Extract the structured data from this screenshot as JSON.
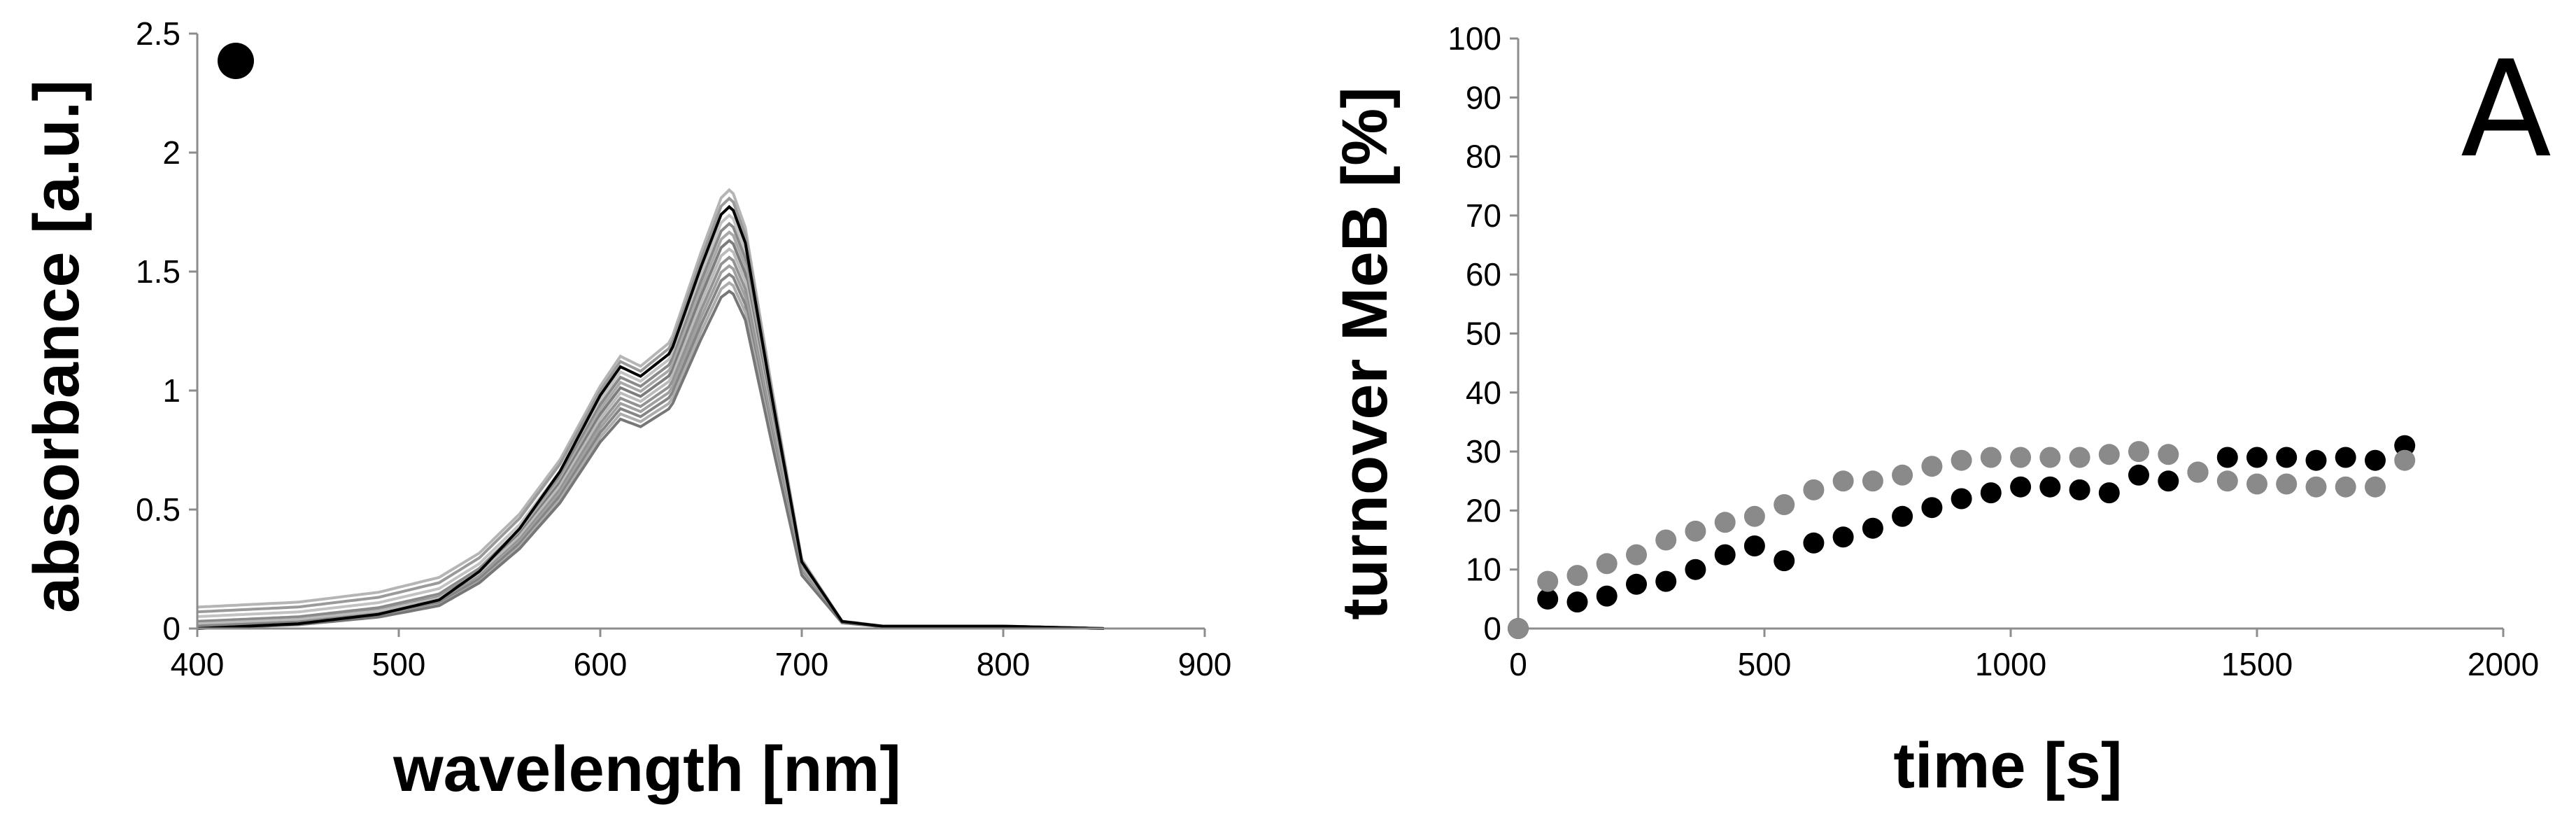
{
  "panel_label": "A",
  "colors": {
    "black_series": "#000000",
    "grey_series": "#8a8a8a",
    "spectra_gray": "#8c8c8c",
    "spectra_dark": "#000000"
  },
  "chart_data": [
    {
      "type": "line",
      "marker_icon": "black-dot",
      "xlabel": "wavelength [nm]",
      "ylabel": "absorbance [a.u.]",
      "xlim": [
        400,
        900
      ],
      "ylim": [
        0,
        2.5
      ],
      "xticks": [
        "400",
        "500",
        "600",
        "700",
        "800",
        "900"
      ],
      "yticks": [
        "0",
        "0.5",
        "1",
        "1.5",
        "2",
        "2.5"
      ],
      "grid": false,
      "legend": "none",
      "reference_spectrum": {
        "x": [
          400,
          450,
          490,
          520,
          540,
          560,
          580,
          600,
          610,
          620,
          635,
          650,
          660,
          665,
          672,
          685,
          700,
          720,
          740,
          800,
          850
        ],
        "y": [
          0.0,
          0.02,
          0.06,
          0.12,
          0.24,
          0.42,
          0.66,
          0.98,
          1.1,
          1.06,
          1.16,
          1.52,
          1.74,
          1.78,
          1.62,
          0.98,
          0.28,
          0.03,
          0.01,
          0.01,
          0.0
        ]
      },
      "spectra_scale_factors": [
        1.04,
        1.02,
        0.98,
        0.96,
        0.94,
        0.92,
        0.9,
        0.88,
        0.86,
        0.84,
        0.82,
        0.8
      ],
      "spectra_baseline_offsets": [
        0.09,
        0.07,
        0.05,
        0.03,
        0.02,
        0.02,
        0.02,
        0.01,
        0.01,
        0.01,
        0.0,
        0.0
      ]
    },
    {
      "type": "scatter",
      "xlabel": "time [s]",
      "ylabel": "turnover MeB [%]",
      "xlim": [
        0,
        2000
      ],
      "ylim": [
        0,
        100
      ],
      "xticks": [
        "0",
        "500",
        "1000",
        "1500",
        "2000"
      ],
      "yticks": [
        "0",
        "10",
        "20",
        "30",
        "40",
        "50",
        "60",
        "70",
        "80",
        "90",
        "100"
      ],
      "grid": false,
      "legend": "none",
      "series": [
        {
          "color": "#000000",
          "x": [
            0,
            60,
            120,
            180,
            240,
            300,
            360,
            420,
            480,
            540,
            600,
            660,
            720,
            780,
            840,
            900,
            960,
            1020,
            1080,
            1140,
            1200,
            1260,
            1320,
            1380,
            1440,
            1500,
            1560,
            1620,
            1680,
            1740,
            1800
          ],
          "y": [
            0,
            5,
            4.5,
            5.5,
            7.5,
            8,
            10,
            12.5,
            14,
            11.5,
            14.5,
            15.5,
            17,
            19,
            20.5,
            22,
            23,
            24,
            24,
            23.5,
            23,
            26,
            25,
            26.5,
            29,
            29,
            29,
            28.5,
            29,
            28.5,
            31
          ]
        },
        {
          "color": "#8a8a8a",
          "x": [
            0,
            60,
            120,
            180,
            240,
            300,
            360,
            420,
            480,
            540,
            600,
            660,
            720,
            780,
            840,
            900,
            960,
            1020,
            1080,
            1140,
            1200,
            1260,
            1320,
            1380,
            1440,
            1500,
            1560,
            1620,
            1680,
            1740,
            1800
          ],
          "y": [
            0,
            8,
            9,
            11,
            12.5,
            15,
            16.5,
            18,
            19,
            21,
            23.5,
            25,
            25,
            26,
            27.5,
            28.5,
            29,
            29,
            29,
            29,
            29.5,
            30,
            29.5,
            26.5,
            25,
            24.5,
            24.5,
            24,
            24,
            24,
            28.5
          ]
        }
      ]
    }
  ]
}
